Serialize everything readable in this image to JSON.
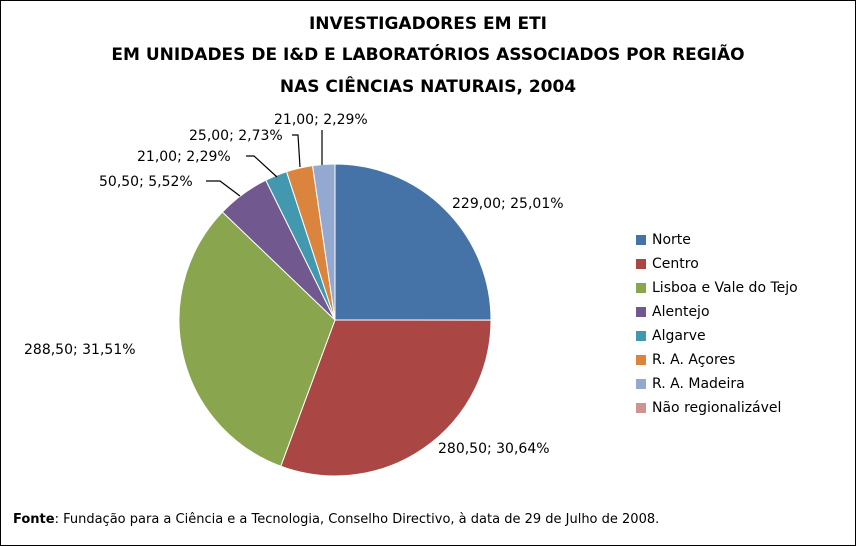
{
  "chart_data": {
    "type": "pie",
    "title_lines": [
      "INVESTIGADORES EM ETI",
      "EM UNIDADES DE I&D E LABORATÓRIOS ASSOCIADOS POR REGIÃO",
      "NAS CIÊNCIAS NATURAIS, 2004"
    ],
    "slices": [
      {
        "name": "Norte",
        "value": 229.0,
        "percent": 25.01,
        "label": "229,00; 25,01%",
        "color": "#4572A7"
      },
      {
        "name": "Centro",
        "value": 280.5,
        "percent": 30.64,
        "label": "280,50; 30,64%",
        "color": "#AA4643"
      },
      {
        "name": "Lisboa e Vale do Tejo",
        "value": 288.5,
        "percent": 31.51,
        "label": "288,50; 31,51%",
        "color": "#89A54E"
      },
      {
        "name": "Alentejo",
        "value": 50.5,
        "percent": 5.52,
        "label": "50,50; 5,52%",
        "color": "#71588F"
      },
      {
        "name": "Algarve",
        "value": 21.0,
        "percent": 2.29,
        "label": "21,00; 2,29%",
        "color": "#4198AF"
      },
      {
        "name": "R. A. Açores",
        "value": 25.0,
        "percent": 2.73,
        "label": "25,00; 2,73%",
        "color": "#DB843D"
      },
      {
        "name": "R. A. Madeira",
        "value": 21.0,
        "percent": 2.29,
        "label": "21,00; 2,29%",
        "color": "#93A9CF"
      },
      {
        "name": "Não regionalizável",
        "value": 0,
        "percent": 0,
        "label": "",
        "color": "#D19392"
      }
    ],
    "legend_position": "right"
  },
  "footer": {
    "source_label": "Fonte",
    "source_text": ": Fundação para a Ciência e a Tecnologia, Conselho Directivo, à data de 29 de Julho de 2008."
  }
}
